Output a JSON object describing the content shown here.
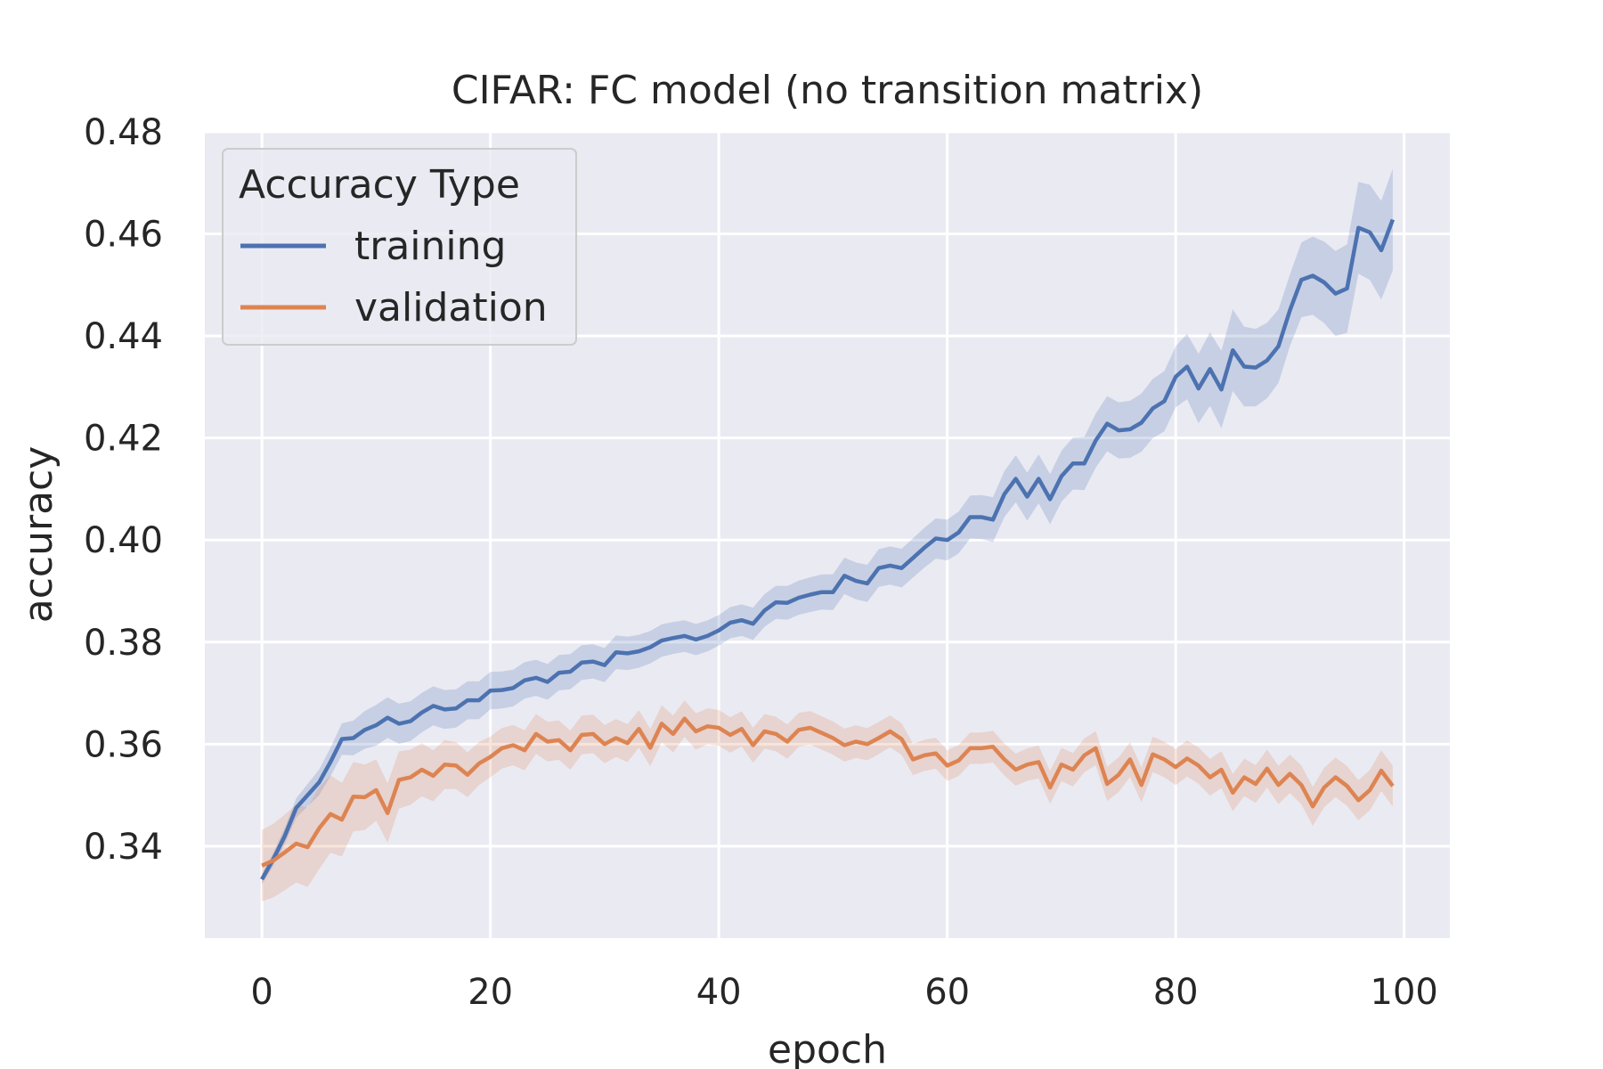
{
  "chart_data": {
    "type": "line",
    "title": "CIFAR: FC model (no transition matrix)",
    "xlabel": "epoch",
    "ylabel": "accuracy",
    "xlim": [
      -5,
      104
    ],
    "ylim": [
      0.322,
      0.48
    ],
    "xticks": [
      0,
      20,
      40,
      60,
      80,
      100
    ],
    "yticks": [
      0.34,
      0.36,
      0.38,
      0.4,
      0.42,
      0.44,
      0.46,
      0.48
    ],
    "xtick_labels": [
      "0",
      "20",
      "40",
      "60",
      "80",
      "100"
    ],
    "ytick_labels": [
      "0.34",
      "0.36",
      "0.38",
      "0.40",
      "0.42",
      "0.44",
      "0.46",
      "0.48"
    ],
    "grid": true,
    "legend": {
      "title": "Accuracy Type",
      "placement": "top-left"
    },
    "colors": {
      "background": "#eaeaf2",
      "grid": "#ffffff",
      "training": "#4c72b0",
      "validation": "#dd8452"
    },
    "series": [
      {
        "name": "training",
        "color": "#4c72b0",
        "keypoints": [
          [
            0,
            0.3335
          ],
          [
            1,
            0.3375
          ],
          [
            2,
            0.342
          ],
          [
            3,
            0.3475
          ],
          [
            4,
            0.35
          ],
          [
            5,
            0.3525
          ],
          [
            6,
            0.3565
          ],
          [
            7,
            0.361
          ],
          [
            8,
            0.3612
          ],
          [
            9,
            0.3628
          ],
          [
            10,
            0.3637
          ],
          [
            11,
            0.3652
          ],
          [
            12,
            0.364
          ],
          [
            13,
            0.3645
          ],
          [
            14,
            0.3662
          ],
          [
            15,
            0.3675
          ],
          [
            16,
            0.3668
          ],
          [
            17,
            0.367
          ],
          [
            18,
            0.3686
          ],
          [
            19,
            0.3686
          ],
          [
            20,
            0.3705
          ],
          [
            21,
            0.3706
          ],
          [
            22,
            0.371
          ],
          [
            23,
            0.3725
          ],
          [
            24,
            0.373
          ],
          [
            25,
            0.3722
          ],
          [
            26,
            0.374
          ],
          [
            27,
            0.3742
          ],
          [
            28,
            0.376
          ],
          [
            29,
            0.3762
          ],
          [
            30,
            0.3755
          ],
          [
            31,
            0.378
          ],
          [
            32,
            0.3778
          ],
          [
            33,
            0.3782
          ],
          [
            34,
            0.379
          ],
          [
            35,
            0.3803
          ],
          [
            36,
            0.3808
          ],
          [
            37,
            0.3812
          ],
          [
            38,
            0.3805
          ],
          [
            39,
            0.3812
          ],
          [
            40,
            0.3823
          ],
          [
            41,
            0.3838
          ],
          [
            42,
            0.3843
          ],
          [
            43,
            0.3836
          ],
          [
            44,
            0.3862
          ],
          [
            45,
            0.3878
          ],
          [
            46,
            0.3877
          ],
          [
            47,
            0.3887
          ],
          [
            48,
            0.3893
          ],
          [
            49,
            0.3898
          ],
          [
            50,
            0.3898
          ],
          [
            51,
            0.393
          ],
          [
            52,
            0.392
          ],
          [
            53,
            0.3915
          ],
          [
            54,
            0.3945
          ],
          [
            55,
            0.395
          ],
          [
            56,
            0.3945
          ],
          [
            57,
            0.3965
          ],
          [
            58,
            0.3985
          ],
          [
            59,
            0.4003
          ],
          [
            60,
            0.4
          ],
          [
            61,
            0.4015
          ],
          [
            62,
            0.4045
          ],
          [
            63,
            0.4045
          ],
          [
            64,
            0.404
          ],
          [
            65,
            0.409
          ],
          [
            66,
            0.412
          ],
          [
            67,
            0.4085
          ],
          [
            68,
            0.412
          ],
          [
            69,
            0.408
          ],
          [
            70,
            0.4125
          ],
          [
            71,
            0.415
          ],
          [
            72,
            0.415
          ],
          [
            73,
            0.4195
          ],
          [
            74,
            0.4228
          ],
          [
            75,
            0.4215
          ],
          [
            76,
            0.4217
          ],
          [
            77,
            0.423
          ],
          [
            78,
            0.4258
          ],
          [
            79,
            0.4272
          ],
          [
            80,
            0.432
          ],
          [
            81,
            0.434
          ],
          [
            82,
            0.4297
          ],
          [
            83,
            0.4335
          ],
          [
            84,
            0.4295
          ],
          [
            85,
            0.4372
          ],
          [
            86,
            0.434
          ],
          [
            87,
            0.4338
          ],
          [
            88,
            0.4352
          ],
          [
            89,
            0.438
          ],
          [
            90,
            0.445
          ],
          [
            91,
            0.451
          ],
          [
            92,
            0.4518
          ],
          [
            93,
            0.4505
          ],
          [
            94,
            0.4483
          ],
          [
            95,
            0.4493
          ],
          [
            96,
            0.4612
          ],
          [
            97,
            0.4603
          ],
          [
            98,
            0.4568
          ],
          [
            99,
            0.4628
          ]
        ],
        "band_halfwidth": [
          [
            0,
            0.001
          ],
          [
            10,
            0.004
          ],
          [
            40,
            0.003
          ],
          [
            60,
            0.004
          ],
          [
            80,
            0.006
          ],
          [
            85,
            0.008
          ],
          [
            90,
            0.007
          ],
          [
            99,
            0.01
          ]
        ]
      },
      {
        "name": "validation",
        "color": "#dd8452",
        "keypoints": [
          [
            0,
            0.3362
          ],
          [
            1,
            0.3372
          ],
          [
            2,
            0.3388
          ],
          [
            3,
            0.3405
          ],
          [
            4,
            0.3398
          ],
          [
            5,
            0.3435
          ],
          [
            6,
            0.3463
          ],
          [
            7,
            0.3452
          ],
          [
            8,
            0.3497
          ],
          [
            9,
            0.3496
          ],
          [
            10,
            0.351
          ],
          [
            11,
            0.3465
          ],
          [
            12,
            0.353
          ],
          [
            13,
            0.3535
          ],
          [
            14,
            0.355
          ],
          [
            15,
            0.3538
          ],
          [
            16,
            0.356
          ],
          [
            17,
            0.3558
          ],
          [
            18,
            0.354
          ],
          [
            19,
            0.3562
          ],
          [
            20,
            0.3575
          ],
          [
            21,
            0.3592
          ],
          [
            22,
            0.3598
          ],
          [
            23,
            0.3588
          ],
          [
            24,
            0.362
          ],
          [
            25,
            0.3605
          ],
          [
            26,
            0.3608
          ],
          [
            27,
            0.3588
          ],
          [
            28,
            0.3618
          ],
          [
            29,
            0.362
          ],
          [
            30,
            0.36
          ],
          [
            31,
            0.3612
          ],
          [
            32,
            0.3602
          ],
          [
            33,
            0.363
          ],
          [
            34,
            0.3593
          ],
          [
            35,
            0.364
          ],
          [
            36,
            0.362
          ],
          [
            37,
            0.365
          ],
          [
            38,
            0.3625
          ],
          [
            39,
            0.3635
          ],
          [
            40,
            0.3632
          ],
          [
            41,
            0.3618
          ],
          [
            42,
            0.363
          ],
          [
            43,
            0.3598
          ],
          [
            44,
            0.3625
          ],
          [
            45,
            0.362
          ],
          [
            46,
            0.3605
          ],
          [
            47,
            0.3628
          ],
          [
            48,
            0.3632
          ],
          [
            49,
            0.3622
          ],
          [
            50,
            0.3612
          ],
          [
            51,
            0.3598
          ],
          [
            52,
            0.3605
          ],
          [
            53,
            0.36
          ],
          [
            54,
            0.3612
          ],
          [
            55,
            0.3625
          ],
          [
            56,
            0.361
          ],
          [
            57,
            0.357
          ],
          [
            58,
            0.3578
          ],
          [
            59,
            0.3582
          ],
          [
            60,
            0.3558
          ],
          [
            61,
            0.3568
          ],
          [
            62,
            0.3592
          ],
          [
            63,
            0.3592
          ],
          [
            64,
            0.3595
          ],
          [
            65,
            0.357
          ],
          [
            66,
            0.355
          ],
          [
            67,
            0.356
          ],
          [
            68,
            0.3565
          ],
          [
            69,
            0.3515
          ],
          [
            70,
            0.356
          ],
          [
            71,
            0.355
          ],
          [
            72,
            0.3578
          ],
          [
            73,
            0.3592
          ],
          [
            74,
            0.3522
          ],
          [
            75,
            0.354
          ],
          [
            76,
            0.357
          ],
          [
            77,
            0.352
          ],
          [
            78,
            0.358
          ],
          [
            79,
            0.357
          ],
          [
            80,
            0.3555
          ],
          [
            81,
            0.3572
          ],
          [
            82,
            0.3558
          ],
          [
            83,
            0.3535
          ],
          [
            84,
            0.355
          ],
          [
            85,
            0.3505
          ],
          [
            86,
            0.3535
          ],
          [
            87,
            0.3522
          ],
          [
            88,
            0.3552
          ],
          [
            89,
            0.352
          ],
          [
            90,
            0.3542
          ],
          [
            91,
            0.352
          ],
          [
            92,
            0.3478
          ],
          [
            93,
            0.3515
          ],
          [
            94,
            0.3535
          ],
          [
            95,
            0.3518
          ],
          [
            96,
            0.349
          ],
          [
            97,
            0.351
          ],
          [
            98,
            0.3548
          ],
          [
            99,
            0.3518
          ]
        ],
        "band_halfwidth": [
          [
            0,
            0.007
          ],
          [
            5,
            0.008
          ],
          [
            10,
            0.006
          ],
          [
            20,
            0.004
          ],
          [
            60,
            0.003
          ],
          [
            99,
            0.004
          ]
        ]
      }
    ]
  }
}
